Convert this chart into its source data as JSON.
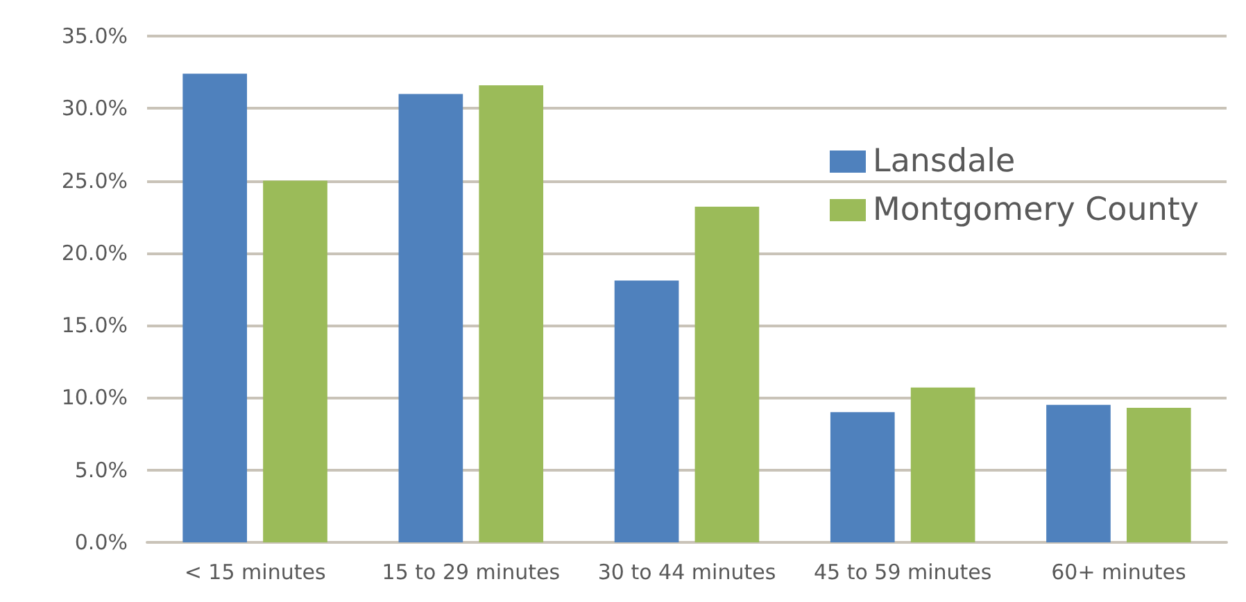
{
  "chart_data": {
    "type": "bar",
    "categories": [
      "< 15 minutes",
      "15 to 29 minutes",
      "30 to 44 minutes",
      "45 to 59 minutes",
      "60+ minutes"
    ],
    "series": [
      {
        "name": "Lansdale",
        "color": "#4f81bd",
        "values": [
          32.4,
          31.0,
          18.1,
          9.0,
          9.5
        ]
      },
      {
        "name": "Montgomery County",
        "color": "#9bbb59",
        "values": [
          25.0,
          31.6,
          23.2,
          10.7,
          9.3
        ]
      }
    ],
    "ylim": [
      0,
      35
    ],
    "yticks": [
      {
        "value": 0,
        "label": "0.0%"
      },
      {
        "value": 5,
        "label": "5.0%"
      },
      {
        "value": 10,
        "label": "10.0%"
      },
      {
        "value": 15,
        "label": "15.0%"
      },
      {
        "value": 20,
        "label": "20.0%"
      },
      {
        "value": 25,
        "label": "25.0%"
      },
      {
        "value": 30,
        "label": "30.0%"
      },
      {
        "value": 35,
        "label": "35.0%"
      }
    ],
    "grid": "y",
    "legend": "top right"
  }
}
